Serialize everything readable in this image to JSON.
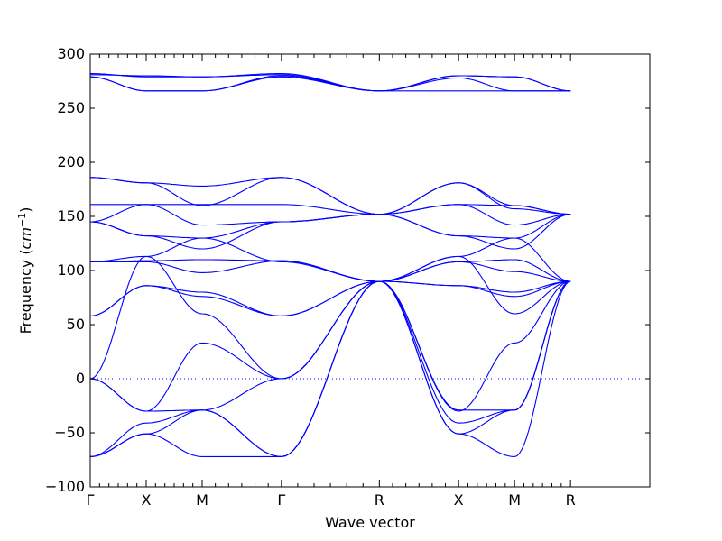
{
  "chart_data": {
    "type": "line",
    "title": "",
    "xlabel": "Wave vector",
    "ylabel": "Frequency ($cm^{-1}$)",
    "ylabel_parts": {
      "prefix": "Frequency (",
      "base": "cm",
      "superscript": "−1",
      "suffix": ")"
    },
    "xlim": [
      0,
      6.0
    ],
    "ylim": [
      -100,
      300
    ],
    "yticks": [
      -100,
      -50,
      0,
      50,
      100,
      150,
      200,
      250,
      300
    ],
    "ytick_labels": [
      "−100",
      "−50",
      "0",
      "50",
      "100",
      "150",
      "200",
      "250",
      "300"
    ],
    "path_points": [
      {
        "label": "Γ",
        "x": 0.0
      },
      {
        "label": "X",
        "x": 0.6
      },
      {
        "label": "M",
        "x": 1.2
      },
      {
        "label": "Γ",
        "x": 2.05
      },
      {
        "label": "R",
        "x": 3.1
      },
      {
        "label": "X",
        "x": 3.95
      },
      {
        "label": "M",
        "x": 4.55
      },
      {
        "label": "R",
        "x": 5.15
      }
    ],
    "zero_line": {
      "y": 0,
      "style": "dotted",
      "color": "#0000ff"
    },
    "line_color": "#0000ff",
    "grid": false,
    "series": [
      {
        "x": [
          0.0,
          0.6,
          1.2,
          2.05,
          3.1,
          3.95,
          4.55,
          5.15
        ],
        "y": [
          282,
          279,
          279,
          282,
          266,
          280,
          279,
          266
        ]
      },
      {
        "x": [
          0.0,
          0.6,
          1.2,
          2.05,
          3.1,
          3.95,
          4.55,
          5.15
        ],
        "y": [
          281,
          280,
          279,
          281,
          266,
          280,
          279,
          266
        ]
      },
      {
        "x": [
          0.0,
          0.6,
          1.2,
          2.05,
          3.1,
          3.95,
          4.55,
          5.15
        ],
        "y": [
          279,
          266,
          266,
          280,
          266,
          278,
          266,
          266
        ]
      },
      {
        "x": [
          0.0,
          0.6,
          1.2,
          2.05,
          3.1,
          3.95,
          4.55,
          5.15
        ],
        "y": [
          279,
          266,
          266,
          279,
          266,
          266,
          266,
          266
        ]
      },
      {
        "x": [
          0.0,
          0.6,
          1.2,
          2.05,
          3.1,
          3.95,
          4.55,
          5.15
        ],
        "y": [
          186,
          181,
          178,
          186,
          152,
          181,
          160,
          152
        ]
      },
      {
        "x": [
          0.0,
          0.6,
          1.2,
          2.05,
          3.1,
          3.95,
          4.55,
          5.15
        ],
        "y": [
          186,
          181,
          160,
          186,
          152,
          181,
          157,
          152
        ]
      },
      {
        "x": [
          0.0,
          0.6,
          1.2,
          2.05,
          3.1,
          3.95,
          4.55,
          5.15
        ],
        "y": [
          161,
          161,
          161,
          161,
          152,
          161,
          160,
          152
        ]
      },
      {
        "x": [
          0.0,
          0.6,
          1.2,
          2.05,
          3.1,
          3.95,
          4.55,
          5.15
        ],
        "y": [
          145,
          161,
          142,
          145,
          152,
          161,
          142,
          152
        ]
      },
      {
        "x": [
          0.0,
          0.6,
          1.2,
          2.05,
          3.1,
          3.95,
          4.55,
          5.15
        ],
        "y": [
          145,
          132,
          130,
          145,
          152,
          132,
          130,
          152
        ]
      },
      {
        "x": [
          0.0,
          0.6,
          1.2,
          2.05,
          3.1,
          3.95,
          4.55,
          5.15
        ],
        "y": [
          145,
          132,
          120,
          145,
          152,
          132,
          120,
          152
        ]
      },
      {
        "x": [
          0.0,
          0.6,
          1.2,
          2.05,
          3.1,
          3.95,
          4.55,
          5.15
        ],
        "y": [
          108,
          113,
          130,
          108,
          90,
          113,
          130,
          90
        ]
      },
      {
        "x": [
          0.0,
          0.6,
          1.2,
          2.05,
          3.1,
          3.95,
          4.55,
          5.15
        ],
        "y": [
          108,
          109,
          110,
          109,
          90,
          108,
          110,
          90
        ]
      },
      {
        "x": [
          0.0,
          0.6,
          1.2,
          2.05,
          3.1,
          3.95,
          4.55,
          5.15
        ],
        "y": [
          108,
          108,
          98,
          109,
          90,
          108,
          99,
          90
        ]
      },
      {
        "x": [
          0.0,
          0.6,
          1.2,
          2.05,
          3.1,
          3.95,
          4.55,
          5.15
        ],
        "y": [
          58,
          86,
          80,
          58,
          90,
          86,
          80,
          90
        ]
      },
      {
        "x": [
          0.0,
          0.6,
          1.2,
          2.05,
          3.1,
          3.95,
          4.55,
          5.15
        ],
        "y": [
          58,
          86,
          76,
          58,
          90,
          86,
          76,
          90
        ]
      },
      {
        "x": [
          0.0,
          0.6,
          1.2,
          2.05,
          3.1,
          3.95,
          4.55,
          5.15
        ],
        "y": [
          0,
          113,
          60,
          0,
          90,
          113,
          60,
          90
        ]
      },
      {
        "x": [
          0.0,
          0.6,
          1.2,
          2.05,
          3.1,
          3.95,
          4.55,
          5.15
        ],
        "y": [
          0,
          -30,
          33,
          0,
          90,
          -30,
          33,
          90
        ]
      },
      {
        "x": [
          0.0,
          0.6,
          1.2,
          2.05,
          3.1,
          3.95,
          4.55,
          5.15
        ],
        "y": [
          0,
          -30,
          -29,
          0,
          90,
          -29,
          -29,
          90
        ]
      },
      {
        "x": [
          0.0,
          0.6,
          1.2,
          2.05,
          3.1,
          3.95,
          4.55,
          5.15
        ],
        "y": [
          -72,
          -41,
          -29,
          -72,
          90,
          -41,
          -29,
          90
        ]
      },
      {
        "x": [
          0.0,
          0.6,
          1.2,
          2.05,
          3.1,
          3.95,
          4.55,
          5.15
        ],
        "y": [
          -72,
          -51,
          -29,
          -72,
          90,
          -51,
          -29,
          90
        ]
      },
      {
        "x": [
          0.0,
          0.6,
          1.2,
          2.05,
          3.1,
          3.95,
          4.55,
          5.15
        ],
        "y": [
          -72,
          -51,
          -72,
          -72,
          90,
          -51,
          -72,
          90
        ]
      }
    ]
  }
}
